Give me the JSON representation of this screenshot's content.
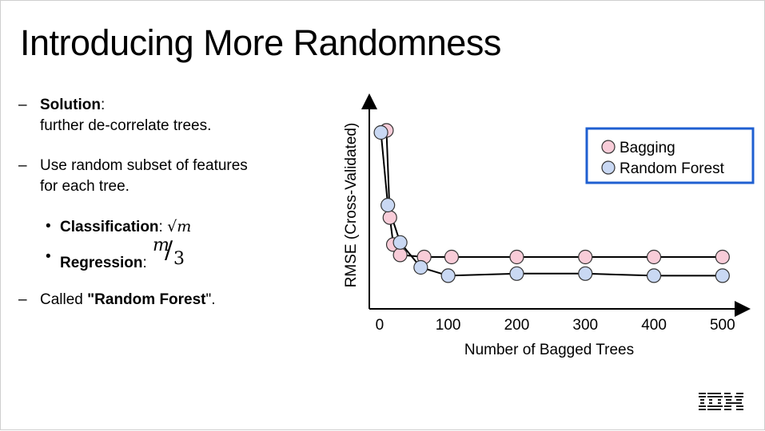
{
  "slide": {
    "title": "Introducing More Randomness"
  },
  "bullets": {
    "b1_bold": "Solution",
    "b1_colon": ":",
    "b1_line2": "further de-correlate trees.",
    "b2_line1": "Use random subset of features",
    "b2_line2": "for each tree.",
    "sub1_bold": "Classification",
    "sub1_colon": ":",
    "sub1_math": "√m",
    "sub2_bold": "Regression",
    "sub2_colon": ":",
    "sub2_math_num": "m",
    "sub2_math_slash": "/",
    "sub2_math_den": "3",
    "b3_pre": "Called ",
    "b3_bold": "\"Random Forest",
    "b3_post": "\".",
    "dash": "–",
    "dot": "•"
  },
  "logo": {
    "text": "IBM"
  },
  "chart_data": {
    "type": "line",
    "xlabel": "Number of Bagged Trees",
    "ylabel": "RMSE (Cross-Validated)",
    "x_ticks": [
      0,
      100,
      200,
      300,
      400,
      500
    ],
    "xlim": [
      -15,
      520
    ],
    "ylim": [
      0,
      10
    ],
    "legend_position": "top-right",
    "grid": false,
    "series": [
      {
        "name": "Bagging",
        "color": "#f8ccd8",
        "x": [
          10,
          15,
          20,
          30,
          65,
          105,
          200,
          300,
          400,
          500
        ],
        "y": [
          8.6,
          4.4,
          3.1,
          2.6,
          2.5,
          2.5,
          2.5,
          2.5,
          2.5,
          2.5
        ]
      },
      {
        "name": "Random Forest",
        "color": "#c9d8f3",
        "x": [
          2,
          12,
          30,
          60,
          100,
          200,
          300,
          400,
          500
        ],
        "y": [
          8.5,
          5.0,
          3.2,
          2.0,
          1.6,
          1.7,
          1.7,
          1.6,
          1.6
        ]
      }
    ]
  }
}
